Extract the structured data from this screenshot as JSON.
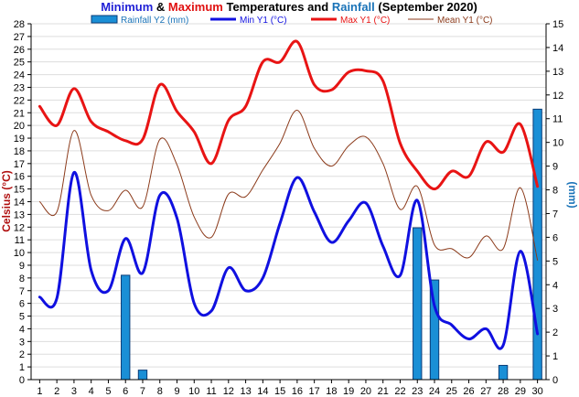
{
  "chart_data": {
    "type": "line",
    "title_parts": [
      {
        "text": "Minimum",
        "color": "#1f1fd6"
      },
      {
        "text": " & ",
        "color": "#000000"
      },
      {
        "text": "Maximum",
        "color": "#e01010"
      },
      {
        "text": " Temperatures and ",
        "color": "#000000"
      },
      {
        "text": "Rainfall",
        "color": "#1a73b8"
      },
      {
        "text": " (September 2020)",
        "color": "#000000"
      }
    ],
    "ylabel_left": "Celsius (°C)",
    "ylabel_right": "(mm)",
    "ylim_left": [
      0,
      28
    ],
    "ylim_right": [
      0,
      15
    ],
    "x": [
      1,
      2,
      3,
      4,
      5,
      6,
      7,
      8,
      9,
      10,
      11,
      12,
      13,
      14,
      15,
      16,
      17,
      18,
      19,
      20,
      21,
      22,
      23,
      24,
      25,
      26,
      27,
      28,
      29,
      30
    ],
    "legend": [
      {
        "key": "rain",
        "label": "Rainfall Y2 (mm)",
        "color": "#1a8fd6"
      },
      {
        "key": "min",
        "label": "Min Y1 (°C)",
        "color": "#1010e0"
      },
      {
        "key": "max",
        "label": "Max Y1 (°C)",
        "color": "#e81414"
      },
      {
        "key": "mean",
        "label": "Mean Y1 (°C)",
        "color": "#8b3a1a"
      }
    ],
    "series": [
      {
        "key": "max",
        "values": [
          21.5,
          20.0,
          22.9,
          20.3,
          19.5,
          18.8,
          18.9,
          23.2,
          21.1,
          19.5,
          17.0,
          20.4,
          21.5,
          25.0,
          25.0,
          26.6,
          23.2,
          22.8,
          24.2,
          24.3,
          23.5,
          18.6,
          16.4,
          15.0,
          16.4,
          16.0,
          18.7,
          17.9,
          20.1,
          15.2
        ]
      },
      {
        "key": "min",
        "values": [
          6.5,
          6.4,
          16.3,
          8.6,
          7.0,
          11.1,
          8.4,
          14.5,
          12.7,
          6.0,
          5.4,
          8.8,
          7.0,
          8.0,
          12.3,
          15.9,
          13.2,
          10.8,
          12.5,
          13.9,
          10.5,
          8.2,
          14.1,
          5.8,
          4.3,
          3.2,
          4.0,
          2.7,
          10.1,
          3.6
        ]
      },
      {
        "key": "mean",
        "values": [
          14.0,
          13.2,
          19.6,
          14.5,
          13.3,
          14.9,
          13.6,
          18.9,
          16.9,
          12.8,
          11.2,
          14.6,
          14.4,
          16.5,
          18.6,
          21.2,
          18.2,
          16.8,
          18.4,
          19.1,
          17.0,
          13.4,
          15.2,
          10.6,
          10.3,
          9.6,
          11.3,
          10.3,
          15.1,
          9.4
        ]
      }
    ],
    "rainfall": [
      0,
      0,
      0,
      0,
      0,
      4.4,
      0.4,
      0,
      0,
      0,
      0,
      0,
      0,
      0,
      0,
      0,
      0,
      0,
      0,
      0,
      0,
      0,
      6.4,
      4.2,
      0,
      0,
      0,
      0.6,
      0,
      11.4
    ],
    "colors": {
      "min": "#1010e0",
      "max": "#e81414",
      "mean": "#8b3a1a",
      "rain_fill": "#1a8fd6",
      "rain_stroke": "#0a3c78",
      "left_axis_label": "#b01010",
      "right_axis": "#1a73b8",
      "grid": "#dddddd"
    }
  }
}
